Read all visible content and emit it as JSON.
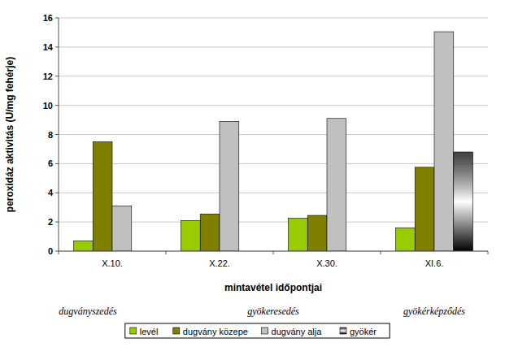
{
  "chart_data": {
    "type": "bar",
    "categories": [
      "X.10.",
      "X.22.",
      "X.30.",
      "XI.6."
    ],
    "series": [
      {
        "name": "levél",
        "color": "#99cc00",
        "values": [
          0.7,
          2.1,
          2.25,
          1.6
        ]
      },
      {
        "name": "dugvány közepe",
        "color": "#808000",
        "values": [
          7.5,
          2.55,
          2.45,
          5.75
        ]
      },
      {
        "name": "dugvány alja",
        "color": "#c0c0c0",
        "values": [
          3.1,
          8.9,
          9.1,
          15.05
        ]
      },
      {
        "name": "gyökér",
        "color": "#000000",
        "values": [
          null,
          null,
          null,
          6.8
        ]
      }
    ],
    "x_label": "mintavétel időpontjai",
    "y_label": "peroxidáz aktivitás (U/mg fehérje)",
    "annotations": [
      "dugványszedés",
      "gyökeresedés",
      "gyökérképződés"
    ],
    "ylim": [
      0,
      16
    ],
    "yticks": [
      0,
      2,
      4,
      6,
      8,
      10,
      12,
      14,
      16
    ],
    "grid": true,
    "legend": "bottom"
  }
}
